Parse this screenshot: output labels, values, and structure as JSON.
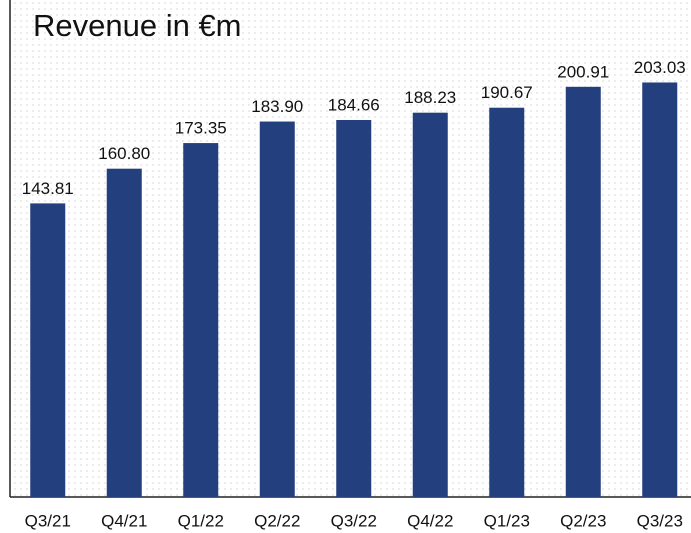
{
  "chart_data": {
    "type": "bar",
    "title": "Revenue in €m",
    "categories": [
      "Q3/21",
      "Q4/21",
      "Q1/22",
      "Q2/22",
      "Q3/22",
      "Q4/22",
      "Q1/23",
      "Q2/23",
      "Q3/23"
    ],
    "values": [
      143.81,
      160.8,
      173.35,
      183.9,
      184.66,
      188.23,
      190.67,
      200.91,
      203.03
    ],
    "value_labels": [
      "143.81",
      "160.80",
      "173.35",
      "183.90",
      "184.66",
      "188.23",
      "190.67",
      "200.91",
      "203.03"
    ],
    "color": "#233f7e",
    "ylim": [
      0,
      240
    ]
  }
}
